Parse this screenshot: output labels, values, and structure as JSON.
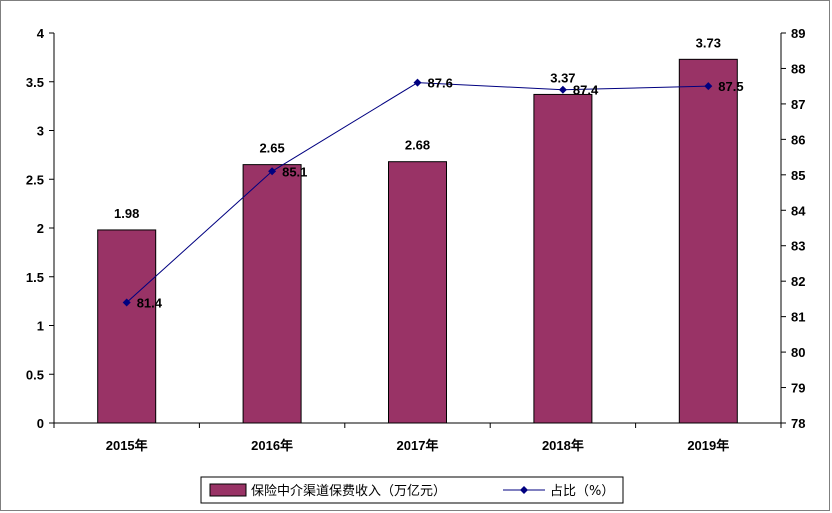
{
  "chart_data": {
    "type": "bar",
    "categories": [
      "2015年",
      "2016年",
      "2017年",
      "2018年",
      "2019年"
    ],
    "series": [
      {
        "name": "保险中介渠道保费收入（万亿元）",
        "type": "bar",
        "axis": "left",
        "values": [
          1.98,
          2.65,
          2.68,
          3.37,
          3.73
        ],
        "labels": [
          "1.98",
          "2.65",
          "2.68",
          "3.37",
          "3.73"
        ],
        "color": "#993366"
      },
      {
        "name": "占比（%）",
        "type": "line",
        "axis": "right",
        "values": [
          81.4,
          85.1,
          87.6,
          87.4,
          87.5
        ],
        "labels": [
          "81.4",
          "85.1",
          "87.6",
          "87.4",
          "87.5"
        ],
        "color": "#000080"
      }
    ],
    "y_left": {
      "ylim": [
        0,
        4
      ],
      "ticks": [
        0,
        0.5,
        1,
        1.5,
        2,
        2.5,
        3,
        3.5,
        4
      ],
      "tick_labels": [
        "0",
        "0.5",
        "1",
        "1.5",
        "2",
        "2.5",
        "3",
        "3.5",
        "4"
      ]
    },
    "y_right": {
      "ylim": [
        78,
        89
      ],
      "ticks": [
        78,
        79,
        80,
        81,
        82,
        83,
        84,
        85,
        86,
        87,
        88,
        89
      ],
      "tick_labels": [
        "78",
        "79",
        "80",
        "81",
        "82",
        "83",
        "84",
        "85",
        "86",
        "87",
        "88",
        "89"
      ]
    },
    "grid": false,
    "legend_position": "bottom"
  }
}
